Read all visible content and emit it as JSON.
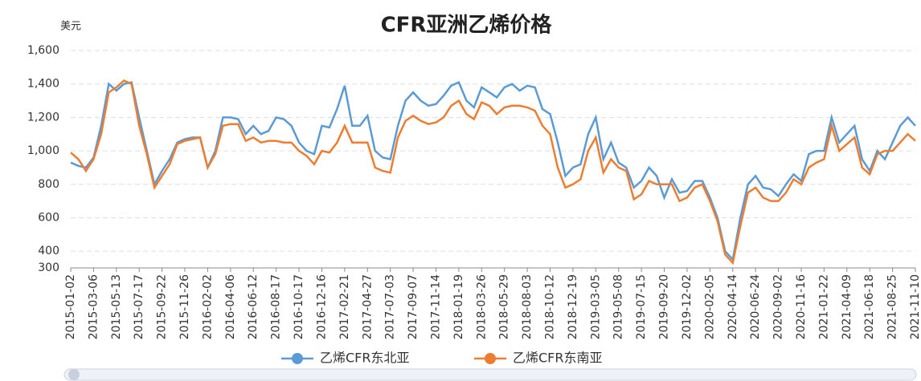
{
  "chart_data": {
    "type": "line",
    "title": "CFR亚洲乙烯价格",
    "y_label": "美元",
    "categories": [
      "2015-01-02",
      null,
      null,
      "2015-03-06",
      null,
      null,
      "2015-05-13",
      null,
      null,
      "2015-07-17",
      null,
      null,
      "2015-09-22",
      null,
      null,
      "2015-11-26",
      null,
      null,
      "2016-02-02",
      null,
      null,
      "2016-04-06",
      null,
      null,
      "2016-06-12",
      null,
      null,
      "2016-08-17",
      null,
      null,
      "2016-10-17",
      null,
      null,
      "2016-12-16",
      null,
      null,
      "2017-02-21",
      null,
      null,
      "2017-04-27",
      null,
      null,
      "2017-07-03",
      null,
      null,
      "2017-09-07",
      null,
      null,
      "2017-11-14",
      null,
      null,
      "2018-01-19",
      null,
      null,
      "2018-03-26",
      null,
      null,
      "2018-05-29",
      null,
      null,
      "2018-08-03",
      null,
      null,
      "2018-10-12",
      null,
      null,
      "2018-12-19",
      null,
      null,
      "2019-03-05",
      null,
      null,
      "2019-05-08",
      null,
      null,
      "2019-07-15",
      null,
      null,
      "2019-09-20",
      null,
      null,
      "2019-12-02",
      null,
      null,
      "2020-02-05",
      null,
      null,
      "2020-04-14",
      null,
      null,
      "2020-06-24",
      null,
      null,
      "2020-09-02",
      null,
      null,
      "2020-11-16",
      null,
      null,
      "2021-01-22",
      null,
      null,
      "2021-04-09",
      null,
      null,
      "2021-06-18",
      null,
      null,
      "2021-08-25",
      null,
      null,
      "2021-11-10"
    ],
    "series": [
      {
        "name": "乙烯CFR东北亚",
        "color": "#5b9bd5",
        "values": [
          930,
          910,
          900,
          960,
          1150,
          1400,
          1360,
          1400,
          1410,
          1200,
          1000,
          800,
          880,
          950,
          1050,
          1070,
          1080,
          1080,
          900,
          1000,
          1200,
          1200,
          1190,
          1100,
          1150,
          1100,
          1120,
          1200,
          1190,
          1150,
          1050,
          1000,
          980,
          1150,
          1140,
          1250,
          1390,
          1150,
          1150,
          1210,
          1000,
          960,
          950,
          1150,
          1300,
          1350,
          1300,
          1270,
          1280,
          1330,
          1390,
          1410,
          1300,
          1260,
          1380,
          1350,
          1320,
          1380,
          1400,
          1360,
          1390,
          1380,
          1250,
          1220,
          1050,
          850,
          900,
          920,
          1100,
          1200,
          950,
          1050,
          930,
          900,
          780,
          820,
          900,
          850,
          720,
          830,
          750,
          760,
          820,
          820,
          720,
          600,
          400,
          350,
          600,
          800,
          850,
          780,
          770,
          730,
          800,
          860,
          820,
          980,
          1000,
          1000,
          1200,
          1050,
          1100,
          1150,
          950,
          880,
          1000,
          950,
          1050,
          1150,
          1200,
          1150
        ]
      },
      {
        "name": "乙烯CFR东南亚",
        "color": "#ed7d31",
        "values": [
          990,
          950,
          880,
          950,
          1100,
          1350,
          1380,
          1420,
          1400,
          1150,
          980,
          780,
          850,
          920,
          1040,
          1060,
          1070,
          1080,
          900,
          980,
          1150,
          1160,
          1160,
          1060,
          1080,
          1050,
          1060,
          1060,
          1050,
          1050,
          1000,
          970,
          920,
          1000,
          990,
          1050,
          1150,
          1050,
          1050,
          1050,
          900,
          880,
          870,
          1080,
          1180,
          1210,
          1180,
          1160,
          1170,
          1200,
          1270,
          1300,
          1220,
          1190,
          1290,
          1270,
          1220,
          1260,
          1270,
          1270,
          1260,
          1240,
          1150,
          1100,
          900,
          780,
          800,
          830,
          1000,
          1080,
          870,
          950,
          900,
          880,
          710,
          740,
          820,
          800,
          800,
          800,
          700,
          720,
          780,
          800,
          700,
          580,
          380,
          330,
          550,
          750,
          780,
          720,
          700,
          700,
          750,
          830,
          800,
          900,
          930,
          950,
          1150,
          1000,
          1040,
          1080,
          900,
          860,
          980,
          1000,
          1000,
          1050,
          1100,
          1060
        ]
      }
    ],
    "ylim": [
      300,
      1600
    ],
    "yticks": [
      300,
      400,
      600,
      800,
      {
        "value": 1000,
        "label": "1,000"
      },
      {
        "value": 1200,
        "label": "1,200"
      },
      {
        "value": 1400,
        "label": "1,400"
      },
      {
        "value": 1600,
        "label": "1,600"
      }
    ],
    "grid": true
  }
}
